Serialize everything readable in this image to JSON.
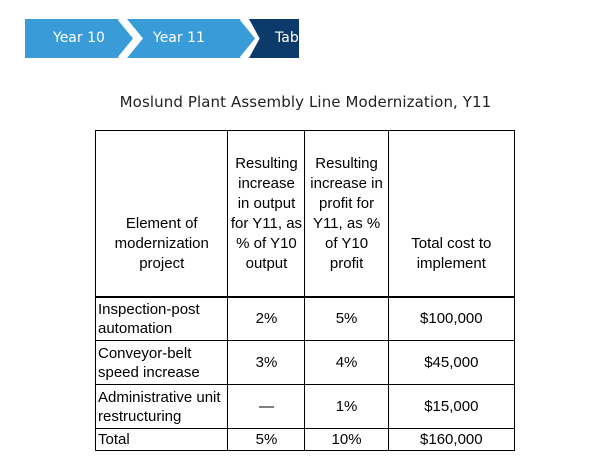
{
  "breadcrumb": {
    "tabs": [
      {
        "label": "Year 10",
        "color": "#3a9bd9"
      },
      {
        "label": "Year 11",
        "color": "#3a9bd9"
      },
      {
        "label": "Table",
        "color": "#0c3a6b"
      }
    ]
  },
  "title": "Moslund Plant Assembly Line Modernization, Y11",
  "table": {
    "headers": {
      "element": "Element of modernization project",
      "output": "Resulting increase in output for Y11, as % of Y10 output",
      "profit": "Resulting increase in profit for Y11, as % of Y10 profit",
      "cost": "Total cost to implement"
    },
    "rows": [
      {
        "element": "Inspection-post automation",
        "output": "2%",
        "profit": "5%",
        "cost": "$100,000"
      },
      {
        "element": "Conveyor-belt speed increase",
        "output": "3%",
        "profit": "4%",
        "cost": "$45,000"
      },
      {
        "element": "Administrative unit restructuring",
        "output": "—",
        "profit": "1%",
        "cost": "$15,000"
      }
    ],
    "total": {
      "element": "Total",
      "output": "5%",
      "profit": "10%",
      "cost": "$160,000"
    }
  }
}
